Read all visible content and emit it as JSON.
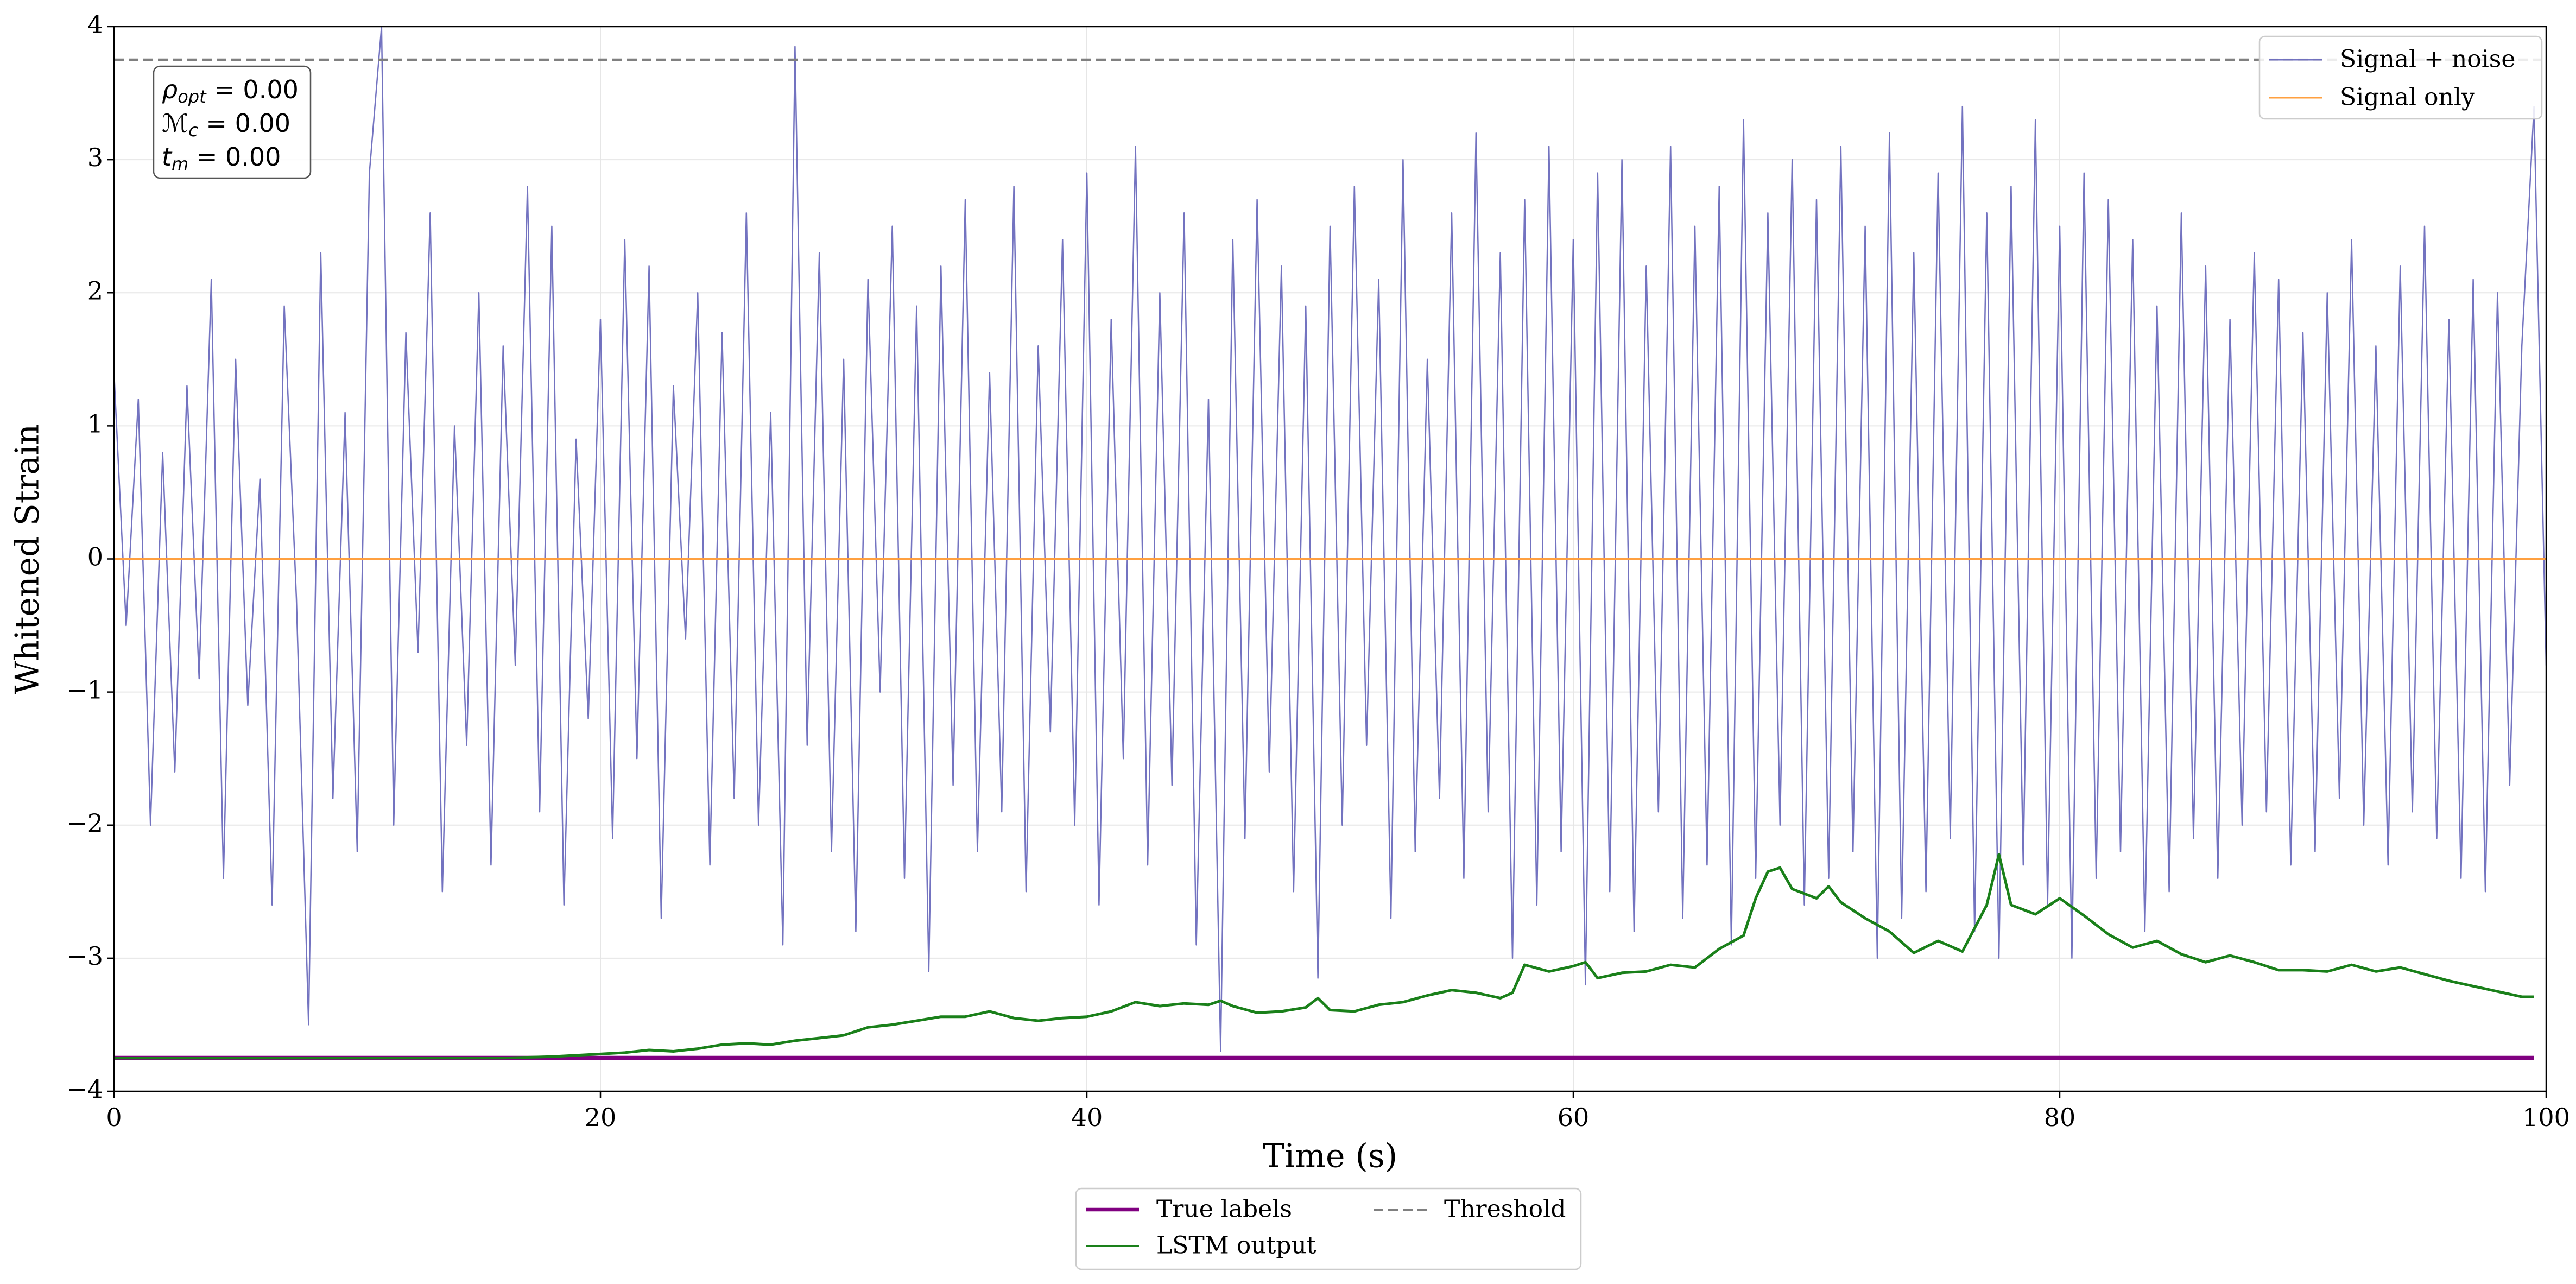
{
  "chart_data": {
    "type": "line",
    "xlabel": "Time (s)",
    "ylabel": "Whitened Strain",
    "xlim": [
      0,
      100
    ],
    "ylim": [
      -4,
      4
    ],
    "xticks": [
      0,
      20,
      40,
      60,
      80,
      100
    ],
    "yticks": [
      {
        "value": -4,
        "label": "−4"
      },
      {
        "value": -3,
        "label": "−3"
      },
      {
        "value": -2,
        "label": "−2"
      },
      {
        "value": -1,
        "label": "−1"
      },
      0,
      1,
      2,
      3,
      4
    ],
    "grid": true,
    "annotations": [
      {
        "base": "ρ",
        "sub": "opt",
        "rest": " = 0.00"
      },
      {
        "base": "ℳ",
        "sub": "c",
        "rest": " = 0.00"
      },
      {
        "base": "t",
        "sub": "m",
        "rest": " = 0.00"
      }
    ],
    "series": [
      {
        "name": "Signal + noise",
        "color": "#5b5bb5",
        "legend": "upper right",
        "width": 2.5,
        "opacity": 0.85,
        "x": [
          0,
          0.5,
          1,
          1.5,
          2,
          2.5,
          3,
          3.5,
          4,
          4.5,
          5,
          5.5,
          6,
          6.5,
          7,
          7.5,
          8,
          8.5,
          9,
          9.5,
          10,
          10.5,
          11,
          11.5,
          12,
          12.5,
          13,
          13.5,
          14,
          14.5,
          15,
          15.5,
          16,
          16.5,
          17,
          17.5,
          18,
          18.5,
          19,
          19.5,
          20,
          20.5,
          21,
          21.5,
          22,
          22.5,
          23,
          23.5,
          24,
          24.5,
          25,
          25.5,
          26,
          26.5,
          27,
          27.5,
          28,
          28.5,
          29,
          29.5,
          30,
          30.5,
          31,
          31.5,
          32,
          32.5,
          33,
          33.5,
          34,
          34.5,
          35,
          35.5,
          36,
          36.5,
          37,
          37.5,
          38,
          38.5,
          39,
          39.5,
          40,
          40.5,
          41,
          41.5,
          42,
          42.5,
          43,
          43.5,
          44,
          44.5,
          45,
          45.5,
          46,
          46.5,
          47,
          47.5,
          48,
          48.5,
          49,
          49.5,
          50,
          50.5,
          51,
          51.5,
          52,
          52.5,
          53,
          53.5,
          54,
          54.5,
          55,
          55.5,
          56,
          56.5,
          57,
          57.5,
          58,
          58.5,
          59,
          59.5,
          60,
          60.5,
          61,
          61.5,
          62,
          62.5,
          63,
          63.5,
          64,
          64.5,
          65,
          65.5,
          66,
          66.5,
          67,
          67.5,
          68,
          68.5,
          69,
          69.5,
          70,
          70.5,
          71,
          71.5,
          72,
          72.5,
          73,
          73.5,
          74,
          74.5,
          75,
          75.5,
          76,
          76.5,
          77,
          77.5,
          78,
          78.5,
          79,
          79.5,
          80,
          80.5,
          81,
          81.5,
          82,
          82.5,
          83,
          83.5,
          84,
          84.5,
          85,
          85.5,
          86,
          86.5,
          87,
          87.5,
          88,
          88.5,
          89,
          89.5,
          90,
          90.5,
          91,
          91.5,
          92,
          92.5,
          93,
          93.5,
          94,
          94.5,
          95,
          95.5,
          96,
          96.5,
          97,
          97.5,
          98,
          98.5,
          99,
          99.5,
          100
        ],
        "values": [
          1.4,
          -0.5,
          1.2,
          -2.0,
          0.8,
          -1.6,
          1.3,
          -0.9,
          2.1,
          -2.4,
          1.5,
          -1.1,
          0.6,
          -2.6,
          1.9,
          -0.3,
          -3.5,
          2.3,
          -1.8,
          1.1,
          -2.2,
          2.9,
          4.0,
          -2.0,
          1.7,
          -0.7,
          2.6,
          -2.5,
          1.0,
          -1.4,
          2.0,
          -2.3,
          1.6,
          -0.8,
          2.8,
          -1.9,
          2.5,
          -2.6,
          0.9,
          -1.2,
          1.8,
          -2.1,
          2.4,
          -1.5,
          2.2,
          -2.7,
          1.3,
          -0.6,
          2.0,
          -2.3,
          1.7,
          -1.8,
          2.6,
          -2.0,
          1.1,
          -2.9,
          3.85,
          -1.4,
          2.3,
          -2.2,
          1.5,
          -2.8,
          2.1,
          -1.0,
          2.5,
          -2.4,
          1.9,
          -3.1,
          2.2,
          -1.7,
          2.7,
          -2.2,
          1.4,
          -1.9,
          2.8,
          -2.5,
          1.6,
          -1.3,
          2.4,
          -2.0,
          2.9,
          -2.6,
          1.8,
          -1.5,
          3.1,
          -2.3,
          2.0,
          -1.7,
          2.6,
          -2.9,
          1.2,
          -3.7,
          2.4,
          -2.1,
          2.7,
          -1.6,
          2.2,
          -2.5,
          1.9,
          -3.15,
          2.5,
          -2.0,
          2.8,
          -1.4,
          2.1,
          -2.7,
          3.0,
          -2.2,
          1.5,
          -1.8,
          2.6,
          -2.4,
          3.2,
          -1.9,
          2.3,
          -3.0,
          2.7,
          -2.6,
          3.1,
          -2.2,
          2.4,
          -3.2,
          2.9,
          -2.5,
          3.0,
          -2.8,
          2.2,
          -1.9,
          3.1,
          -2.7,
          2.5,
          -2.3,
          2.8,
          -2.9,
          3.3,
          -2.4,
          2.6,
          -2.0,
          3.0,
          -2.6,
          2.7,
          -2.4,
          3.1,
          -2.2,
          2.5,
          -3.0,
          3.2,
          -2.7,
          2.3,
          -2.5,
          2.9,
          -2.1,
          3.4,
          -2.8,
          2.6,
          -3.0,
          2.8,
          -2.3,
          3.3,
          -2.6,
          2.5,
          -3.0,
          2.9,
          -2.4,
          2.7,
          -2.2,
          2.4,
          -2.8,
          1.9,
          -2.5,
          2.6,
          -2.1,
          2.2,
          -2.4,
          1.8,
          -2.0,
          2.3,
          -1.9,
          2.1,
          -2.3,
          1.7,
          -2.2,
          2.0,
          -1.8,
          2.4,
          -2.0,
          1.6,
          -2.3,
          2.2,
          -1.9,
          2.5,
          -2.1,
          1.8,
          -2.4,
          2.1,
          -2.5,
          2.0,
          -1.7,
          1.6,
          3.4,
          -0.8
        ]
      },
      {
        "name": "Signal only",
        "color": "#ffa040",
        "legend": "upper right",
        "width": 3,
        "opacity": 1,
        "x": [
          0,
          100
        ],
        "values": [
          0,
          0
        ]
      },
      {
        "name": "True labels",
        "color": "#800080",
        "legend": "bottom",
        "width": 8,
        "opacity": 1,
        "x": [
          0,
          99.5
        ],
        "values": [
          -3.75,
          -3.75
        ]
      },
      {
        "name": "LSTM output",
        "color": "#1a801a",
        "legend": "bottom",
        "width": 5,
        "opacity": 1,
        "x": [
          0,
          16,
          18,
          20,
          21,
          22,
          23,
          24,
          25,
          26,
          27,
          28,
          29,
          30,
          31,
          32,
          33,
          34,
          35,
          36,
          37,
          38,
          39,
          40,
          41,
          42,
          43,
          44,
          45,
          45.5,
          46,
          47,
          48,
          49,
          49.5,
          50,
          51,
          52,
          53,
          54,
          55,
          56,
          57,
          57.5,
          58,
          59,
          60,
          60.5,
          61,
          62,
          63,
          64,
          65,
          66,
          67,
          67.5,
          68,
          68.5,
          69,
          70,
          70.5,
          71,
          72,
          73,
          74,
          75,
          76,
          77,
          77.5,
          78,
          79,
          80,
          81,
          82,
          83,
          84,
          85,
          86,
          87,
          88,
          89,
          90,
          91,
          92,
          93,
          94,
          95,
          96,
          97,
          98,
          99,
          99.5
        ],
        "values": [
          -3.75,
          -3.75,
          -3.74,
          -3.72,
          -3.71,
          -3.69,
          -3.7,
          -3.68,
          -3.65,
          -3.64,
          -3.65,
          -3.62,
          -3.6,
          -3.58,
          -3.52,
          -3.5,
          -3.47,
          -3.44,
          -3.44,
          -3.4,
          -3.45,
          -3.47,
          -3.45,
          -3.44,
          -3.4,
          -3.33,
          -3.36,
          -3.34,
          -3.35,
          -3.32,
          -3.36,
          -3.41,
          -3.4,
          -3.37,
          -3.3,
          -3.39,
          -3.4,
          -3.35,
          -3.33,
          -3.28,
          -3.24,
          -3.26,
          -3.3,
          -3.26,
          -3.05,
          -3.1,
          -3.06,
          -3.03,
          -3.15,
          -3.11,
          -3.1,
          -3.05,
          -3.07,
          -2.93,
          -2.83,
          -2.55,
          -2.35,
          -2.32,
          -2.48,
          -2.55,
          -2.46,
          -2.58,
          -2.7,
          -2.8,
          -2.96,
          -2.87,
          -2.95,
          -2.6,
          -2.22,
          -2.6,
          -2.67,
          -2.55,
          -2.68,
          -2.82,
          -2.92,
          -2.87,
          -2.97,
          -3.03,
          -2.98,
          -3.03,
          -3.09,
          -3.09,
          -3.1,
          -3.05,
          -3.1,
          -3.07,
          -3.12,
          -3.17,
          -3.21,
          -3.25,
          -3.29,
          -3.29
        ]
      },
      {
        "name": "Threshold",
        "color": "#808080",
        "legend": "bottom",
        "width": 5,
        "opacity": 1,
        "dashed": true,
        "x": [
          0,
          100
        ],
        "values": [
          3.75,
          3.75
        ]
      }
    ]
  }
}
